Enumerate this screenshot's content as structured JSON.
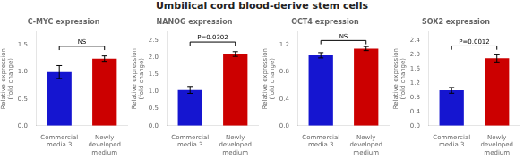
{
  "title": "Umbilical cord blood-derive stem cells",
  "chart_data": [
    {
      "type": "bar",
      "title": "C-MYC expression",
      "categories": [
        "Commercial\nmedia 3",
        "Newly\ndeveloped\nmedium"
      ],
      "values": [
        1.0,
        1.25
      ],
      "errors": [
        0.12,
        0.05
      ],
      "colors": [
        "#1515d0",
        "#cc0000"
      ],
      "ylabel": "Relative expression\n(fold change)",
      "ylim": [
        0,
        1.75
      ],
      "yticks": [
        {
          "value": 0.0,
          "label": "0.0"
        },
        {
          "value": 0.5,
          "label": "0.5"
        },
        {
          "value": 1.0,
          "label": "1.0"
        },
        {
          "value": 1.5,
          "label": "1.5"
        }
      ],
      "annotations": [
        {
          "text": "NS",
          "y": 1.48
        }
      ],
      "grid": false
    },
    {
      "type": "bar",
      "title": "NANOG expression",
      "categories": [
        "Commercial\nmedia 3",
        "Newly\ndeveloped\nmedium"
      ],
      "values": [
        1.05,
        2.1
      ],
      "errors": [
        0.1,
        0.07
      ],
      "colors": [
        "#1515d0",
        "#cc0000"
      ],
      "ylabel": "Relative expression\n(fold change)",
      "ylim": [
        0,
        2.75
      ],
      "yticks": [
        {
          "value": 0.0,
          "label": "0.0"
        },
        {
          "value": 0.5,
          "label": "0.5"
        },
        {
          "value": 1.0,
          "label": "1.0"
        },
        {
          "value": 1.5,
          "label": "1.5"
        },
        {
          "value": 2.0,
          "label": "2.0"
        },
        {
          "value": 2.5,
          "label": "2.5"
        }
      ],
      "annotations": [
        {
          "text": "P=0.0302",
          "y": 2.45
        }
      ],
      "grid": false
    },
    {
      "type": "bar",
      "title": "OCT4 expression",
      "categories": [
        "Commercial\nmedia 3",
        "Newly\ndeveloped\nmedium"
      ],
      "values": [
        1.05,
        1.15
      ],
      "errors": [
        0.04,
        0.03
      ],
      "colors": [
        "#1515d0",
        "#cc0000"
      ],
      "ylabel": "Relative expression\n(fold change)",
      "ylim": [
        0,
        1.4
      ],
      "yticks": [
        {
          "value": 0.0,
          "label": "0.0"
        },
        {
          "value": 0.4,
          "label": "0.4"
        },
        {
          "value": 0.8,
          "label": "0.8"
        },
        {
          "value": 1.2,
          "label": "1.2"
        }
      ],
      "annotations": [
        {
          "text": "NS",
          "y": 1.27
        }
      ],
      "grid": false
    },
    {
      "type": "bar",
      "title": "SOX2 expression",
      "categories": [
        "Commercial\nmedia 3",
        "Newly\ndeveloped\nmedium"
      ],
      "values": [
        1.0,
        1.9
      ],
      "errors": [
        0.08,
        0.1
      ],
      "colors": [
        "#1515d0",
        "#cc0000"
      ],
      "ylabel": "Relative expression\n(fold change)",
      "ylim": [
        0,
        2.65
      ],
      "yticks": [
        {
          "value": 0.0,
          "label": "0.0"
        },
        {
          "value": 0.4,
          "label": "0.4"
        },
        {
          "value": 0.8,
          "label": "0.8"
        },
        {
          "value": 1.2,
          "label": "1.2"
        },
        {
          "value": 1.6,
          "label": "1.6"
        },
        {
          "value": 2.0,
          "label": "2.0"
        },
        {
          "value": 2.4,
          "label": "2.4"
        }
      ],
      "annotations": [
        {
          "text": "P=0.0012",
          "y": 2.25
        }
      ],
      "grid": false
    }
  ]
}
